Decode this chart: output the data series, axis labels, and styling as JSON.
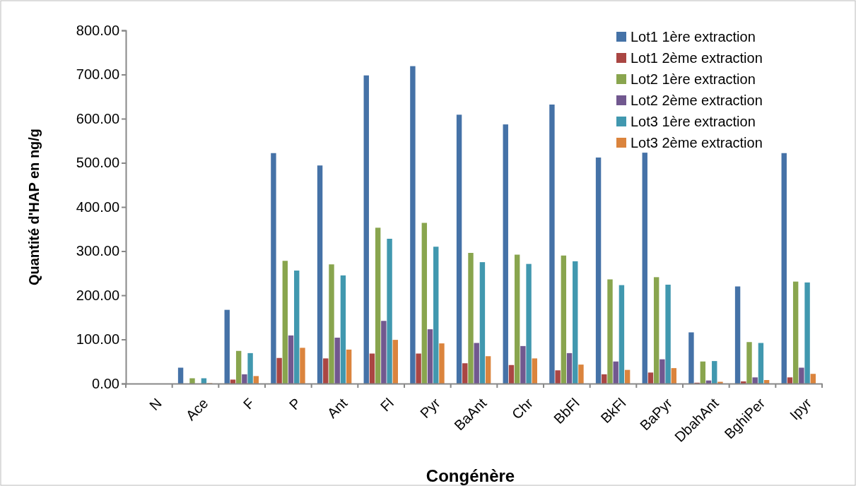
{
  "chart_data": {
    "type": "bar",
    "xlabel": "Congénère",
    "ylabel": "Quantité d'HAP en ng/g",
    "categories": [
      "N",
      "Ace",
      "F",
      "P",
      "Ant",
      "Fl",
      "Pyr",
      "BaAnt",
      "Chr",
      "BbFl",
      "BkFl",
      "BaPyr",
      "DbahAnt",
      "BghiPer",
      "Ipyr"
    ],
    "series": [
      {
        "name": "Lot1 1ère extraction",
        "color": "#4572a7",
        "values": [
          0,
          36,
          167,
          522,
          494,
          698,
          719,
          609,
          587,
          632,
          512,
          523,
          116,
          220,
          522
        ]
      },
      {
        "name": "Lot1 2ème extraction",
        "color": "#aa4643",
        "values": [
          0,
          0,
          9,
          58,
          57,
          68,
          68,
          46,
          42,
          30,
          21,
          25,
          2,
          5,
          14
        ]
      },
      {
        "name": "Lot2 1ère extraction",
        "color": "#89a54e",
        "values": [
          0,
          12,
          74,
          278,
          270,
          353,
          364,
          296,
          292,
          290,
          236,
          241,
          50,
          94,
          231
        ]
      },
      {
        "name": "Lot2 2ème extraction",
        "color": "#71588f",
        "values": [
          0,
          null,
          21,
          109,
          104,
          142,
          123,
          92,
          85,
          69,
          50,
          55,
          7,
          14,
          36
        ]
      },
      {
        "name": "Lot3 1ère extraction",
        "color": "#4198af",
        "values": [
          0,
          12,
          69,
          256,
          245,
          328,
          310,
          275,
          271,
          277,
          223,
          224,
          51,
          92,
          229
        ]
      },
      {
        "name": "Lot3 2ème extraction",
        "color": "#db843d",
        "values": [
          0,
          1,
          17,
          81,
          77,
          99,
          91,
          62,
          57,
          43,
          31,
          35,
          4,
          8,
          22
        ]
      }
    ],
    "ylim": [
      0,
      800
    ],
    "yticks": [
      {
        "value": 0,
        "label": "0.00"
      },
      {
        "value": 100,
        "label": "100.00"
      },
      {
        "value": 200,
        "label": "200.00"
      },
      {
        "value": 300,
        "label": "300.00"
      },
      {
        "value": 400,
        "label": "400.00"
      },
      {
        "value": 500,
        "label": "500.00"
      },
      {
        "value": 600,
        "label": "600.00"
      },
      {
        "value": 700,
        "label": "700.00"
      },
      {
        "value": 800,
        "label": "800.00"
      }
    ],
    "grid": false,
    "legend": "top right"
  }
}
